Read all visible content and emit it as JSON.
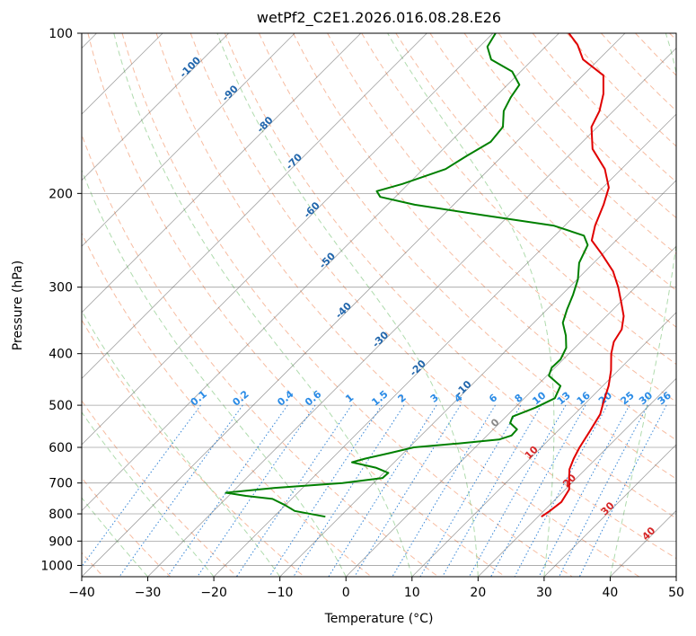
{
  "chart_data": {
    "type": "line",
    "title": "wetPf2_C2E1.2026.016.08.28.E26",
    "xlabel": "Temperature (°C)",
    "ylabel": "Pressure (hPa)",
    "xlim": [
      -40,
      50
    ],
    "ylim": [
      1050,
      100
    ],
    "x_ticks": [
      -40,
      -30,
      -20,
      -10,
      0,
      10,
      20,
      30,
      40,
      50
    ],
    "y_ticks": [
      100,
      200,
      300,
      400,
      500,
      600,
      700,
      800,
      900,
      1000
    ],
    "skew": 45,
    "colors": {
      "temperature": "#e00000",
      "dewpoint": "#008000",
      "dry_adiabat": "#f4a582",
      "moist_adiabat": "#4daf4a",
      "mixing_ratio": "#1f78d1",
      "isotherm": "#555555",
      "isobar": "#555555",
      "adiabat_label": "#2166ac",
      "mixing_label": "#2a8be6",
      "warm_label": "#d62728",
      "zero_label": "#888888"
    },
    "series": [
      {
        "name": "temperature",
        "points": [
          {
            "p": 810,
            "t": 20.5
          },
          {
            "p": 790,
            "t": 20.9
          },
          {
            "p": 760,
            "t": 21.3
          },
          {
            "p": 720,
            "t": 20.6
          },
          {
            "p": 690,
            "t": 19.1
          },
          {
            "p": 660,
            "t": 17.6
          },
          {
            "p": 630,
            "t": 16.6
          },
          {
            "p": 600,
            "t": 15.8
          },
          {
            "p": 560,
            "t": 14.9
          },
          {
            "p": 520,
            "t": 13.9
          },
          {
            "p": 490,
            "t": 12.4
          },
          {
            "p": 460,
            "t": 10.9
          },
          {
            "p": 430,
            "t": 8.9
          },
          {
            "p": 400,
            "t": 6.4
          },
          {
            "p": 380,
            "t": 5.0
          },
          {
            "p": 360,
            "t": 4.3
          },
          {
            "p": 340,
            "t": 2.6
          },
          {
            "p": 320,
            "t": 0.1
          },
          {
            "p": 300,
            "t": -2.6
          },
          {
            "p": 280,
            "t": -5.8
          },
          {
            "p": 260,
            "t": -10.1
          },
          {
            "p": 245,
            "t": -13.7
          },
          {
            "p": 230,
            "t": -15.4
          },
          {
            "p": 210,
            "t": -17.3
          },
          {
            "p": 195,
            "t": -19.1
          },
          {
            "p": 180,
            "t": -22.5
          },
          {
            "p": 165,
            "t": -27.4
          },
          {
            "p": 150,
            "t": -30.9
          },
          {
            "p": 140,
            "t": -32.1
          },
          {
            "p": 130,
            "t": -34.1
          },
          {
            "p": 120,
            "t": -36.9
          },
          {
            "p": 112,
            "t": -42.4
          },
          {
            "p": 105,
            "t": -45.5
          },
          {
            "p": 100,
            "t": -48.5
          }
        ]
      },
      {
        "name": "dewpoint",
        "points": [
          {
            "p": 810,
            "t": -12.2
          },
          {
            "p": 790,
            "t": -17.7
          },
          {
            "p": 770,
            "t": -20.1
          },
          {
            "p": 750,
            "t": -22.9
          },
          {
            "p": 740,
            "t": -27.4
          },
          {
            "p": 730,
            "t": -30.9
          },
          {
            "p": 715,
            "t": -24.2
          },
          {
            "p": 700,
            "t": -14.7
          },
          {
            "p": 685,
            "t": -9.4
          },
          {
            "p": 670,
            "t": -9.3
          },
          {
            "p": 655,
            "t": -12.0
          },
          {
            "p": 640,
            "t": -16.4
          },
          {
            "p": 630,
            "t": -15.0
          },
          {
            "p": 615,
            "t": -12.1
          },
          {
            "p": 600,
            "t": -9.3
          },
          {
            "p": 590,
            "t": -3.2
          },
          {
            "p": 580,
            "t": 2.4
          },
          {
            "p": 570,
            "t": 3.7
          },
          {
            "p": 555,
            "t": 3.6
          },
          {
            "p": 540,
            "t": 1.6
          },
          {
            "p": 525,
            "t": 1.0
          },
          {
            "p": 505,
            "t": 3.1
          },
          {
            "p": 485,
            "t": 4.6
          },
          {
            "p": 460,
            "t": 3.6
          },
          {
            "p": 440,
            "t": 0.3
          },
          {
            "p": 425,
            "t": -0.5
          },
          {
            "p": 410,
            "t": -0.4
          },
          {
            "p": 390,
            "t": -1.3
          },
          {
            "p": 370,
            "t": -3.2
          },
          {
            "p": 350,
            "t": -5.6
          },
          {
            "p": 330,
            "t": -7.0
          },
          {
            "p": 310,
            "t": -8.3
          },
          {
            "p": 290,
            "t": -9.9
          },
          {
            "p": 270,
            "t": -12.2
          },
          {
            "p": 250,
            "t": -13.6
          },
          {
            "p": 240,
            "t": -15.6
          },
          {
            "p": 230,
            "t": -21.6
          },
          {
            "p": 220,
            "t": -33.6
          },
          {
            "p": 210,
            "t": -45.9
          },
          {
            "p": 203,
            "t": -52.3
          },
          {
            "p": 198,
            "t": -53.7
          },
          {
            "p": 192,
            "t": -50.9
          },
          {
            "p": 180,
            "t": -46.6
          },
          {
            "p": 170,
            "t": -45.4
          },
          {
            "p": 160,
            "t": -43.9
          },
          {
            "p": 150,
            "t": -44.3
          },
          {
            "p": 140,
            "t": -46.6
          },
          {
            "p": 132,
            "t": -47.6
          },
          {
            "p": 125,
            "t": -48.2
          },
          {
            "p": 118,
            "t": -51.3
          },
          {
            "p": 112,
            "t": -56.3
          },
          {
            "p": 106,
            "t": -58.8
          },
          {
            "p": 100,
            "t": -59.6
          }
        ]
      }
    ],
    "dry_adiabat_labels": [
      "-100",
      "-90",
      "-80",
      "-70",
      "-60",
      "-50",
      "-40",
      "-30",
      "-20",
      "-10",
      "0",
      "10",
      "20",
      "30",
      "40"
    ],
    "mixing_ratio_labels": [
      "0.1",
      "0.2",
      "0.4",
      "0.6",
      "1",
      "1.5",
      "2",
      "3",
      "4",
      "6",
      "8",
      "10",
      "13",
      "16",
      "20",
      "25",
      "30",
      "36"
    ],
    "mixing_ratio_values": [
      0.1,
      0.2,
      0.4,
      0.6,
      1,
      1.5,
      2,
      3,
      4,
      6,
      8,
      10,
      13,
      16,
      20,
      25,
      30,
      36
    ],
    "moist_adiabats_c": [
      -30,
      -20,
      -10,
      0,
      10,
      20,
      30,
      40
    ]
  }
}
